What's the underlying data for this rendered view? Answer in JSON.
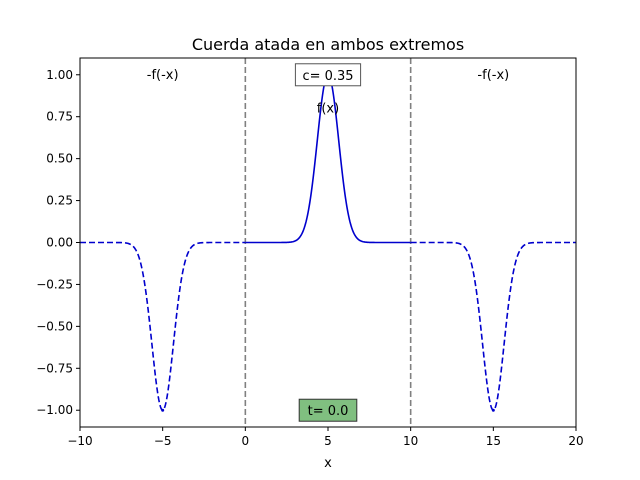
{
  "chart_data": {
    "type": "line",
    "title": "Cuerda atada en ambos extremos",
    "xlabel": "x",
    "ylabel": "",
    "xlim": [
      -10,
      20
    ],
    "ylim": [
      -1.1,
      1.1
    ],
    "xticks": [
      -10,
      -5,
      0,
      5,
      10,
      15,
      20
    ],
    "xtick_labels": [
      "−10",
      "−5",
      "0",
      "5",
      "10",
      "15",
      "20"
    ],
    "yticks": [
      -1.0,
      -0.75,
      -0.5,
      -0.25,
      0.0,
      0.25,
      0.5,
      0.75,
      1.0
    ],
    "ytick_labels": [
      "−1.00",
      "−0.75",
      "−0.50",
      "−0.25",
      "0.00",
      "0.25",
      "0.50",
      "0.75",
      "1.00"
    ],
    "grid": false,
    "vlines": [
      0,
      10
    ],
    "curve": {
      "form": "gaussian",
      "amplitude": 1.0,
      "sigma": 0.65
    },
    "series": [
      {
        "style": "solid",
        "color": "#0000cd",
        "center": 5,
        "sign": 1,
        "x_range": [
          0,
          10
        ]
      },
      {
        "style": "dashed",
        "color": "#0000cd",
        "center": -5,
        "sign": -1,
        "x_range": [
          -10,
          0
        ]
      },
      {
        "style": "dashed",
        "color": "#0000cd",
        "center": 15,
        "sign": -1,
        "x_range": [
          10,
          20
        ]
      }
    ],
    "peak_points": [
      {
        "x": 5,
        "y": 1.0
      },
      {
        "x": -5,
        "y": -1.0
      },
      {
        "x": 15,
        "y": -1.0
      }
    ],
    "annotations": [
      {
        "text": "-f(-x)",
        "x": -5,
        "y": 1.0
      },
      {
        "text": "f(x)",
        "x": 5,
        "y": 0.8
      },
      {
        "text": "-f(-x)",
        "x": 15,
        "y": 1.0
      }
    ],
    "info_boxes": [
      {
        "text": "c= 0.35",
        "x": 5,
        "y": 1.0,
        "bg": "#ffffff",
        "edge": "#555555"
      },
      {
        "text": "t= 0.0",
        "x": 5,
        "y": -1.0,
        "bg": "#80bf80",
        "edge": "#333333"
      }
    ]
  }
}
